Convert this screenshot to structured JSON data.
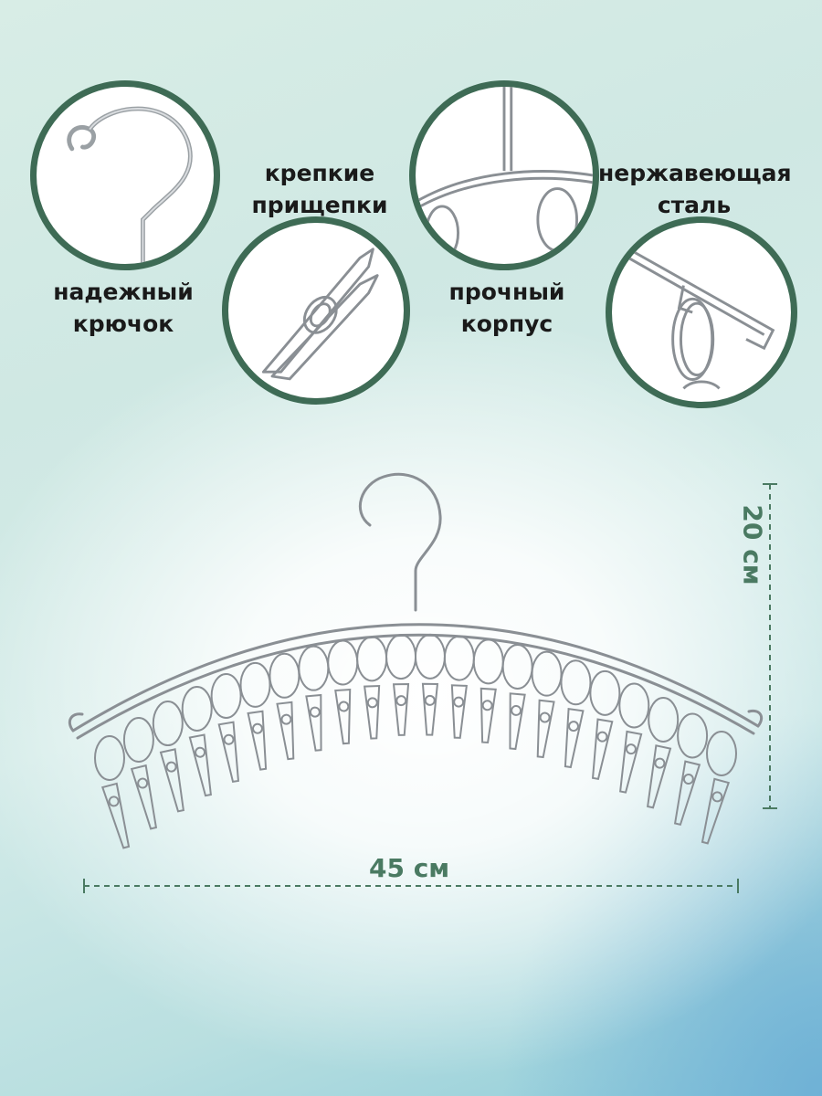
{
  "features": [
    {
      "line1": "надежный",
      "line2": "крючок",
      "icon": "hook-icon"
    },
    {
      "line1": "крепкие",
      "line2": "прищепки",
      "icon": "clothespin-icon"
    },
    {
      "line1": "прочный",
      "line2": "корпус",
      "icon": "frame-icon"
    },
    {
      "line1": "нержавеющая",
      "line2": "сталь",
      "icon": "steel-ring-icon"
    }
  ],
  "dimensions": {
    "width_label": "45 см",
    "height_label": "20 см"
  },
  "colors": {
    "circle_border": "#3e6b55",
    "dimension": "#4a7a62",
    "steel": "#8a8f94"
  },
  "product": {
    "clip_count": 22
  }
}
